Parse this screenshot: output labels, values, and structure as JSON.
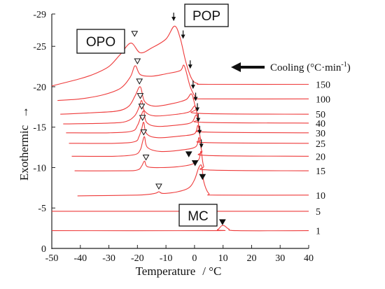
{
  "chart_data": {
    "type": "line",
    "xlabel": "Temperature",
    "xlabel_unit": "/ °C",
    "ylabel": "Exothermic",
    "ylabel_arrow": "→",
    "xlim": [
      -50,
      40
    ],
    "ylim": [
      0,
      -29
    ],
    "x_ticks": [
      "-50",
      "-40",
      "-30",
      "-20",
      "-10",
      "0",
      "10",
      "20",
      "30",
      "40"
    ],
    "y_ticks": [
      "-29",
      "-25",
      "-20",
      "-15",
      "-10",
      "-5",
      "0"
    ],
    "line_color": "#ee3b3b",
    "annotations": {
      "opo": "OPO",
      "pop": "POP",
      "mc": "MC",
      "cooling": "Cooling (°C·min",
      "cooling_sup": "-1",
      "cooling_close": ")"
    },
    "series": [
      {
        "rate": "150",
        "baseline": -20.3,
        "points": [
          [
            -50,
            -20.1
          ],
          [
            -40,
            -21.0
          ],
          [
            -35,
            -21.6
          ],
          [
            -30,
            -22.5
          ],
          [
            -26,
            -24.0
          ],
          [
            -22.3,
            -25.4
          ],
          [
            -19,
            -24.2
          ],
          [
            -15,
            -24.8
          ],
          [
            -10,
            -25.9
          ],
          [
            -7,
            -27.5
          ],
          [
            -5,
            -26.0
          ],
          [
            -3,
            -23.0
          ],
          [
            -1,
            -21.0
          ],
          [
            1,
            -20.4
          ],
          [
            5,
            -20.3
          ],
          [
            40,
            -20.3
          ]
        ],
        "arrows": [
          {
            "kind": "open",
            "x": -21.0,
            "y": -26.6
          },
          {
            "kind": "down",
            "x": -7.3,
            "y": -28.3
          },
          {
            "kind": "down",
            "x": -4.0,
            "y": -26.1
          }
        ]
      },
      {
        "rate": "100",
        "baseline": -18.5,
        "points": [
          [
            -48,
            -18.3
          ],
          [
            -40,
            -18.5
          ],
          [
            -32,
            -19.0
          ],
          [
            -26,
            -19.8
          ],
          [
            -22.5,
            -21.2
          ],
          [
            -20.8,
            -22.6
          ],
          [
            -19,
            -21.5
          ],
          [
            -15,
            -21.3
          ],
          [
            -10,
            -21.6
          ],
          [
            -5,
            -22.0
          ],
          [
            -3.6,
            -22.6
          ],
          [
            -1.5,
            -20.0
          ],
          [
            0.5,
            -18.7
          ],
          [
            3,
            -18.5
          ],
          [
            40,
            -18.5
          ]
        ],
        "arrows": [
          {
            "kind": "open",
            "x": -20.0,
            "y": -23.2
          },
          {
            "kind": "down",
            "x": -1.5,
            "y": -22.4
          }
        ]
      },
      {
        "rate": "50",
        "baseline": -16.6,
        "points": [
          [
            -47,
            -16.6
          ],
          [
            -35,
            -16.8
          ],
          [
            -27,
            -17.0
          ],
          [
            -23,
            -17.6
          ],
          [
            -20.8,
            -18.9
          ],
          [
            -19.0,
            -20.0
          ],
          [
            -17.5,
            -18.2
          ],
          [
            -14,
            -17.6
          ],
          [
            -8,
            -17.9
          ],
          [
            -3,
            -18.4
          ],
          [
            -1.0,
            -19.1
          ],
          [
            0.5,
            -17.3
          ],
          [
            2,
            -16.7
          ],
          [
            40,
            -16.6
          ]
        ],
        "arrows": [
          {
            "kind": "open",
            "x": -19.3,
            "y": -20.7
          },
          {
            "kind": "down",
            "x": -0.5,
            "y": -19.9
          }
        ]
      },
      {
        "rate": "40",
        "baseline": -15.5,
        "points": [
          [
            -46,
            -15.4
          ],
          [
            -30,
            -15.5
          ],
          [
            -24,
            -15.7
          ],
          [
            -21,
            -16.4
          ],
          [
            -19.5,
            -17.4
          ],
          [
            -18.5,
            -18.3
          ],
          [
            -17.5,
            -17.0
          ],
          [
            -14,
            -16.4
          ],
          [
            -6,
            -16.6
          ],
          [
            -1.8,
            -16.9
          ],
          [
            0.2,
            -17.6
          ],
          [
            1.3,
            -16.0
          ],
          [
            3,
            -15.6
          ],
          [
            40,
            -15.5
          ]
        ],
        "arrows": [
          {
            "kind": "open",
            "x": -19.0,
            "y": -18.9
          },
          {
            "kind": "down",
            "x": 0.4,
            "y": -18.4
          }
        ]
      },
      {
        "rate": "30",
        "baseline": -14.3,
        "points": [
          [
            -45,
            -14.3
          ],
          [
            -30,
            -14.3
          ],
          [
            -22,
            -14.5
          ],
          [
            -20,
            -15.2
          ],
          [
            -18.8,
            -16.3
          ],
          [
            -17.8,
            -17.0
          ],
          [
            -16.8,
            -15.6
          ],
          [
            -13,
            -15.1
          ],
          [
            -5,
            -15.3
          ],
          [
            -1,
            -15.6
          ],
          [
            0.7,
            -16.5
          ],
          [
            1.8,
            -14.8
          ],
          [
            4,
            -14.4
          ],
          [
            40,
            -14.3
          ]
        ],
        "arrows": [
          {
            "kind": "open",
            "x": -18.5,
            "y": -17.6
          },
          {
            "kind": "down",
            "x": 1.0,
            "y": -17.1
          }
        ]
      },
      {
        "rate": "25",
        "baseline": -13.0,
        "points": [
          [
            -44,
            -13.0
          ],
          [
            -28,
            -13.0
          ],
          [
            -21,
            -13.2
          ],
          [
            -19.5,
            -13.8
          ],
          [
            -18.5,
            -14.8
          ],
          [
            -17.8,
            -15.6
          ],
          [
            -16.8,
            -14.2
          ],
          [
            -13,
            -13.7
          ],
          [
            -5,
            -13.9
          ],
          [
            0,
            -14.2
          ],
          [
            1.2,
            -15.2
          ],
          [
            2.2,
            -13.5
          ],
          [
            4,
            -13.1
          ],
          [
            40,
            -13.0
          ]
        ],
        "arrows": [
          {
            "kind": "open",
            "x": -18.2,
            "y": -16.2
          },
          {
            "kind": "down",
            "x": 1.3,
            "y": -15.8
          }
        ]
      },
      {
        "rate": "20",
        "baseline": -11.4,
        "points": [
          [
            -43,
            -11.4
          ],
          [
            -28,
            -11.4
          ],
          [
            -21,
            -11.6
          ],
          [
            -19,
            -12.2
          ],
          [
            -18.2,
            -13.2
          ],
          [
            -17.5,
            -13.8
          ],
          [
            -16.5,
            -12.5
          ],
          [
            -12,
            -12.0
          ],
          [
            -4,
            -12.2
          ],
          [
            0.5,
            -12.6
          ],
          [
            1.6,
            -13.7
          ],
          [
            2.6,
            -12.0
          ],
          [
            4.5,
            -11.5
          ],
          [
            40,
            -11.4
          ]
        ],
        "arrows": [
          {
            "kind": "open",
            "x": -17.8,
            "y": -14.4
          },
          {
            "kind": "down",
            "x": 1.8,
            "y": -14.3
          }
        ]
      },
      {
        "rate": "15",
        "baseline": -9.6,
        "points": [
          [
            -42,
            -9.6
          ],
          [
            -25,
            -9.6
          ],
          [
            -20,
            -9.7
          ],
          [
            -18.5,
            -10.2
          ],
          [
            -17.5,
            -10.8
          ],
          [
            -16.5,
            -10.1
          ],
          [
            -12,
            -10.0
          ],
          [
            -6,
            -10.1
          ],
          [
            -1,
            -10.4
          ],
          [
            1.5,
            -11.0
          ],
          [
            2.3,
            -12.0
          ],
          [
            3.2,
            -10.2
          ],
          [
            5,
            -9.7
          ],
          [
            40,
            -9.6
          ]
        ],
        "arrows": [
          {
            "kind": "open",
            "x": -17.0,
            "y": -11.3
          },
          {
            "kind": "down",
            "x": 2.4,
            "y": -12.6
          },
          {
            "kind": "filled",
            "x": -2.0,
            "y": -11.7
          }
        ]
      },
      {
        "rate": "10",
        "baseline": -6.6,
        "points": [
          [
            -41,
            -6.5
          ],
          [
            -20,
            -6.6
          ],
          [
            -14,
            -6.8
          ],
          [
            -12.5,
            -7.0
          ],
          [
            -11,
            -6.8
          ],
          [
            -6,
            -7.0
          ],
          [
            -2,
            -7.5
          ],
          [
            0,
            -8.5
          ],
          [
            1.5,
            -10.0
          ],
          [
            2.5,
            -10.2
          ],
          [
            3.3,
            -8.2
          ],
          [
            5,
            -6.8
          ],
          [
            8,
            -6.6
          ],
          [
            40,
            -6.6
          ]
        ],
        "arrows": [
          {
            "kind": "open",
            "x": -12.5,
            "y": -7.7
          },
          {
            "kind": "filled",
            "x": 0.2,
            "y": -10.6
          },
          {
            "kind": "filled",
            "x": 2.8,
            "y": -8.9
          }
        ]
      },
      {
        "rate": "5",
        "baseline": -4.6,
        "points": [
          [
            -50,
            -4.6
          ],
          [
            40,
            -4.6
          ]
        ],
        "arrows": []
      },
      {
        "rate": "1",
        "baseline": -2.2,
        "points": [
          [
            -50,
            -2.2
          ],
          [
            6,
            -2.2
          ],
          [
            8,
            -2.3
          ],
          [
            9.5,
            -2.8
          ],
          [
            10.5,
            -2.8
          ],
          [
            12,
            -2.4
          ],
          [
            15,
            -2.2
          ],
          [
            40,
            -2.2
          ]
        ],
        "arrows": [
          {
            "kind": "filled",
            "x": 9.8,
            "y": -3.3
          }
        ]
      }
    ]
  }
}
